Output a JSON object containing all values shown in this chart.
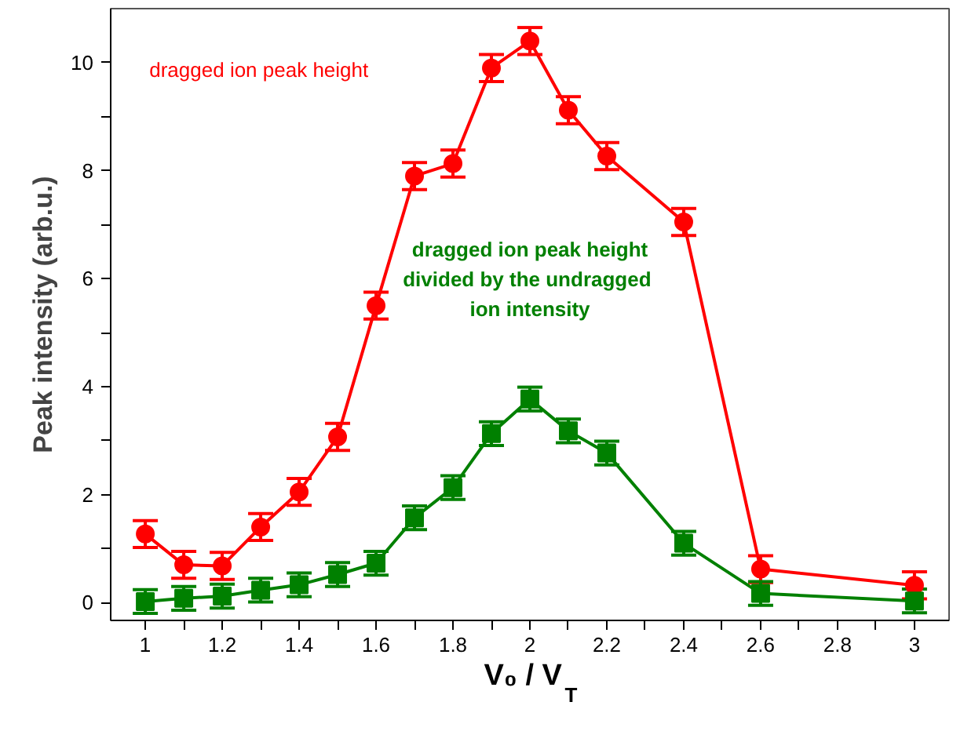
{
  "chart_data": {
    "type": "line",
    "xlabel": "V₀ / V$_{T}$",
    "ylabel": "Peak intensity (arb.u.)",
    "x": [
      1,
      1.1,
      1.2,
      1.3,
      1.4,
      1.5,
      1.6,
      1.7,
      1.8,
      1.9,
      2,
      2.1,
      2.2,
      2.4,
      2.6,
      3
    ],
    "series": [
      {
        "name": "dragged ion peak height",
        "color": "#ff0000",
        "marker": "circle",
        "values": [
          1.27,
          0.7,
          0.68,
          1.4,
          2.05,
          3.07,
          5.5,
          7.9,
          8.13,
          9.9,
          10.4,
          9.12,
          8.27,
          7.05,
          0.62,
          0.32
        ],
        "errors": [
          0.25,
          0.25,
          0.25,
          0.25,
          0.25,
          0.25,
          0.25,
          0.25,
          0.25,
          0.25,
          0.25,
          0.25,
          0.25,
          0.25,
          0.25,
          0.25
        ]
      },
      {
        "name": "dragged ion peak height\ndivided by  the undragged\nion intensity",
        "color": "#008000",
        "marker": "square",
        "values": [
          0.02,
          0.08,
          0.12,
          0.23,
          0.33,
          0.52,
          0.73,
          1.57,
          2.13,
          3.13,
          3.77,
          3.18,
          2.77,
          1.1,
          0.17,
          0.03
        ],
        "errors": [
          0.22,
          0.22,
          0.22,
          0.22,
          0.22,
          0.22,
          0.22,
          0.22,
          0.22,
          0.22,
          0.22,
          0.22,
          0.22,
          0.22,
          0.22,
          0.22
        ]
      }
    ],
    "xlim": [
      0.91,
      3.09
    ],
    "ylim": [
      -0.33,
      11.0
    ],
    "xticks": [
      1,
      {
        "value": 1.1,
        "label": null
      },
      1.2,
      {
        "value": 1.3,
        "label": null
      },
      1.4,
      {
        "value": 1.5,
        "label": null
      },
      1.6,
      {
        "value": 1.7,
        "label": null
      },
      1.8,
      {
        "value": 1.9,
        "label": null
      },
      2,
      {
        "value": 2.1,
        "label": null
      },
      2.2,
      {
        "value": 2.3,
        "label": null
      },
      2.4,
      {
        "value": 2.5,
        "label": null
      },
      2.6,
      {
        "value": 2.7,
        "label": null
      },
      2.8,
      {
        "value": 2.9,
        "label": null
      },
      3
    ],
    "yticks": [
      0,
      {
        "value": 1,
        "label": null
      },
      2,
      {
        "value": 3,
        "label": null
      },
      4,
      {
        "value": 5,
        "label": null
      },
      6,
      {
        "value": 7,
        "label": null
      },
      8,
      {
        "value": 9,
        "label": null
      },
      10
    ],
    "grid": false,
    "line_style": "solid"
  }
}
